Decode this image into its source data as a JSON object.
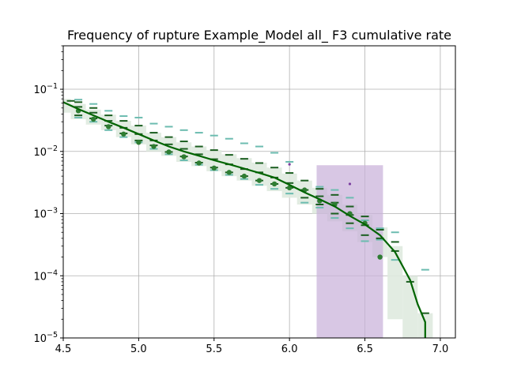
{
  "chart_data": {
    "type": "line",
    "title": "Frequency of rupture Example_Model all_ F3 cumulative rate",
    "xlabel": "",
    "ylabel": "",
    "xlim": [
      4.5,
      7.1
    ],
    "ylim": [
      1e-05,
      0.5
    ],
    "yscale": "log",
    "grid": true,
    "x_ticks": [
      "4.5",
      "5.0",
      "5.5",
      "6.0",
      "6.5",
      "7.0"
    ],
    "y_ticks": [
      {
        "value": 1e-05,
        "base": "10",
        "exp": "−5"
      },
      {
        "value": 0.0001,
        "base": "10",
        "exp": "−4"
      },
      {
        "value": 0.001,
        "base": "10",
        "exp": "−3"
      },
      {
        "value": 0.01,
        "base": "10",
        "exp": "−2"
      },
      {
        "value": 0.1,
        "base": "10",
        "exp": "−1"
      }
    ],
    "colors": {
      "model_line": "#006400",
      "model_band": "#dfeadf",
      "obs_points": "#2e7d32",
      "dash_dark": "#1b5e20",
      "dash_light": "#6cbcb0",
      "purple_box": "#c9b2da",
      "purple_point": "#7b3fa0"
    },
    "model_curve": {
      "x": [
        4.5,
        4.6,
        4.7,
        4.8,
        4.9,
        5.0,
        5.1,
        5.2,
        5.3,
        5.4,
        5.5,
        5.6,
        5.7,
        5.8,
        5.9,
        6.0,
        6.1,
        6.2,
        6.3,
        6.4,
        6.5,
        6.6,
        6.7,
        6.8,
        6.85,
        6.9,
        6.9
      ],
      "y": [
        0.062,
        0.048,
        0.038,
        0.03,
        0.024,
        0.019,
        0.015,
        0.012,
        0.01,
        0.0085,
        0.0072,
        0.0062,
        0.0053,
        0.0045,
        0.0038,
        0.0029,
        0.0022,
        0.0017,
        0.0013,
        0.00092,
        0.00067,
        0.00045,
        0.00024,
        8.5e-05,
        3.5e-05,
        1.8e-05,
        1e-05
      ]
    },
    "model_band_steps": [
      {
        "x0": 4.45,
        "x1": 4.55,
        "lo": 0.042,
        "hi": 0.07
      },
      {
        "x0": 4.55,
        "x1": 4.65,
        "lo": 0.033,
        "hi": 0.058
      },
      {
        "x0": 4.65,
        "x1": 4.75,
        "lo": 0.027,
        "hi": 0.047
      },
      {
        "x0": 4.75,
        "x1": 4.85,
        "lo": 0.022,
        "hi": 0.039
      },
      {
        "x0": 4.85,
        "x1": 4.95,
        "lo": 0.017,
        "hi": 0.031
      },
      {
        "x0": 4.95,
        "x1": 5.05,
        "lo": 0.013,
        "hi": 0.026
      },
      {
        "x0": 5.05,
        "x1": 5.15,
        "lo": 0.01,
        "hi": 0.02
      },
      {
        "x0": 5.15,
        "x1": 5.25,
        "lo": 0.0085,
        "hi": 0.017
      },
      {
        "x0": 5.25,
        "x1": 5.35,
        "lo": 0.0068,
        "hi": 0.014
      },
      {
        "x0": 5.35,
        "x1": 5.45,
        "lo": 0.0058,
        "hi": 0.012
      },
      {
        "x0": 5.45,
        "x1": 5.55,
        "lo": 0.0048,
        "hi": 0.0105
      },
      {
        "x0": 5.55,
        "x1": 5.65,
        "lo": 0.004,
        "hi": 0.009
      },
      {
        "x0": 5.65,
        "x1": 5.75,
        "lo": 0.0034,
        "hi": 0.0078
      },
      {
        "x0": 5.75,
        "x1": 5.85,
        "lo": 0.0028,
        "hi": 0.0066
      },
      {
        "x0": 5.85,
        "x1": 5.95,
        "lo": 0.0023,
        "hi": 0.0055
      },
      {
        "x0": 5.95,
        "x1": 6.05,
        "lo": 0.0018,
        "hi": 0.0044
      },
      {
        "x0": 6.05,
        "x1": 6.15,
        "lo": 0.0014,
        "hi": 0.0034
      },
      {
        "x0": 6.15,
        "x1": 6.25,
        "lo": 0.001,
        "hi": 0.0026
      },
      {
        "x0": 6.25,
        "x1": 6.35,
        "lo": 0.00075,
        "hi": 0.002
      },
      {
        "x0": 6.35,
        "x1": 6.45,
        "lo": 0.00052,
        "hi": 0.0014
      },
      {
        "x0": 6.45,
        "x1": 6.55,
        "lo": 0.00035,
        "hi": 0.00095
      },
      {
        "x0": 6.55,
        "x1": 6.65,
        "lo": 0.0002,
        "hi": 0.0006
      },
      {
        "x0": 6.65,
        "x1": 6.75,
        "lo": 2e-05,
        "hi": 0.0003
      },
      {
        "x0": 6.75,
        "x1": 6.85,
        "lo": 1e-05,
        "hi": 0.0001
      },
      {
        "x0": 6.85,
        "x1": 6.95,
        "lo": 1e-05,
        "hi": 2.5e-05
      }
    ],
    "observed_points": {
      "x": [
        4.6,
        4.7,
        4.8,
        4.9,
        5.0,
        5.1,
        5.2,
        5.3,
        5.4,
        5.5,
        5.6,
        5.7,
        5.8,
        5.9,
        6.0,
        6.1,
        6.2,
        6.3,
        6.4,
        6.5,
        6.6
      ],
      "y": [
        0.045,
        0.033,
        0.025,
        0.019,
        0.014,
        0.012,
        0.0098,
        0.0082,
        0.0065,
        0.0054,
        0.0046,
        0.004,
        0.0034,
        0.003,
        0.0026,
        0.0024,
        0.0016,
        0.0014,
        0.001,
        0.0007,
        0.0002
      ]
    },
    "dash_markers_dark": [
      {
        "x": 4.55,
        "y": 0.065
      },
      {
        "x": 4.6,
        "y": 0.062
      },
      {
        "x": 4.6,
        "y": 0.052
      },
      {
        "x": 4.6,
        "y": 0.038
      },
      {
        "x": 4.7,
        "y": 0.05
      },
      {
        "x": 4.7,
        "y": 0.042
      },
      {
        "x": 4.7,
        "y": 0.034
      },
      {
        "x": 4.8,
        "y": 0.038
      },
      {
        "x": 4.8,
        "y": 0.031
      },
      {
        "x": 4.8,
        "y": 0.026
      },
      {
        "x": 4.9,
        "y": 0.031
      },
      {
        "x": 4.9,
        "y": 0.024
      },
      {
        "x": 4.9,
        "y": 0.0195
      },
      {
        "x": 5.0,
        "y": 0.026
      },
      {
        "x": 5.0,
        "y": 0.019
      },
      {
        "x": 5.0,
        "y": 0.015
      },
      {
        "x": 5.1,
        "y": 0.02
      },
      {
        "x": 5.1,
        "y": 0.015
      },
      {
        "x": 5.1,
        "y": 0.0125
      },
      {
        "x": 5.2,
        "y": 0.017
      },
      {
        "x": 5.2,
        "y": 0.013
      },
      {
        "x": 5.2,
        "y": 0.0098
      },
      {
        "x": 5.3,
        "y": 0.0145
      },
      {
        "x": 5.3,
        "y": 0.011
      },
      {
        "x": 5.3,
        "y": 0.0083
      },
      {
        "x": 5.4,
        "y": 0.012
      },
      {
        "x": 5.4,
        "y": 0.009
      },
      {
        "x": 5.4,
        "y": 0.0066
      },
      {
        "x": 5.5,
        "y": 0.0105
      },
      {
        "x": 5.5,
        "y": 0.0075
      },
      {
        "x": 5.5,
        "y": 0.0055
      },
      {
        "x": 5.6,
        "y": 0.0088
      },
      {
        "x": 5.6,
        "y": 0.0062
      },
      {
        "x": 5.6,
        "y": 0.0046
      },
      {
        "x": 5.7,
        "y": 0.0076
      },
      {
        "x": 5.7,
        "y": 0.0052
      },
      {
        "x": 5.7,
        "y": 0.004
      },
      {
        "x": 5.8,
        "y": 0.0065
      },
      {
        "x": 5.8,
        "y": 0.0046
      },
      {
        "x": 5.8,
        "y": 0.0034
      },
      {
        "x": 5.9,
        "y": 0.0055
      },
      {
        "x": 5.9,
        "y": 0.0038
      },
      {
        "x": 5.9,
        "y": 0.003
      },
      {
        "x": 6.0,
        "y": 0.0045
      },
      {
        "x": 6.0,
        "y": 0.0031
      },
      {
        "x": 6.0,
        "y": 0.0026
      },
      {
        "x": 6.1,
        "y": 0.0034
      },
      {
        "x": 6.1,
        "y": 0.0024
      },
      {
        "x": 6.1,
        "y": 0.0018
      },
      {
        "x": 6.2,
        "y": 0.0025
      },
      {
        "x": 6.2,
        "y": 0.0019
      },
      {
        "x": 6.2,
        "y": 0.0014
      },
      {
        "x": 6.3,
        "y": 0.002
      },
      {
        "x": 6.3,
        "y": 0.0015
      },
      {
        "x": 6.3,
        "y": 0.001
      },
      {
        "x": 6.4,
        "y": 0.0013
      },
      {
        "x": 6.4,
        "y": 0.00095
      },
      {
        "x": 6.4,
        "y": 0.0007
      },
      {
        "x": 6.5,
        "y": 0.0009
      },
      {
        "x": 6.5,
        "y": 0.00065
      },
      {
        "x": 6.5,
        "y": 0.00045
      },
      {
        "x": 6.6,
        "y": 0.00055
      },
      {
        "x": 6.6,
        "y": 0.0004
      },
      {
        "x": 6.7,
        "y": 0.00035
      },
      {
        "x": 6.7,
        "y": 0.00025
      },
      {
        "x": 6.8,
        "y": 8e-05
      },
      {
        "x": 6.9,
        "y": 2.5e-05
      }
    ],
    "dash_markers_light": [
      {
        "x": 4.6,
        "y": 0.068
      },
      {
        "x": 4.6,
        "y": 0.035
      },
      {
        "x": 4.7,
        "y": 0.058
      },
      {
        "x": 4.7,
        "y": 0.03
      },
      {
        "x": 4.8,
        "y": 0.045
      },
      {
        "x": 4.8,
        "y": 0.022
      },
      {
        "x": 4.9,
        "y": 0.037
      },
      {
        "x": 4.9,
        "y": 0.017
      },
      {
        "x": 5.0,
        "y": 0.035
      },
      {
        "x": 5.0,
        "y": 0.014
      },
      {
        "x": 5.1,
        "y": 0.028
      },
      {
        "x": 5.1,
        "y": 0.011
      },
      {
        "x": 5.2,
        "y": 0.025
      },
      {
        "x": 5.2,
        "y": 0.009
      },
      {
        "x": 5.3,
        "y": 0.022
      },
      {
        "x": 5.3,
        "y": 0.0072
      },
      {
        "x": 5.4,
        "y": 0.02
      },
      {
        "x": 5.4,
        "y": 0.0061
      },
      {
        "x": 5.5,
        "y": 0.018
      },
      {
        "x": 5.5,
        "y": 0.005
      },
      {
        "x": 5.6,
        "y": 0.016
      },
      {
        "x": 5.6,
        "y": 0.0042
      },
      {
        "x": 5.7,
        "y": 0.0135
      },
      {
        "x": 5.7,
        "y": 0.0036
      },
      {
        "x": 5.8,
        "y": 0.012
      },
      {
        "x": 5.8,
        "y": 0.0029
      },
      {
        "x": 5.9,
        "y": 0.0095
      },
      {
        "x": 5.9,
        "y": 0.0025
      },
      {
        "x": 6.0,
        "y": 0.0068
      },
      {
        "x": 6.0,
        "y": 0.0021
      },
      {
        "x": 6.1,
        "y": 0.0015
      },
      {
        "x": 6.2,
        "y": 0.0027
      },
      {
        "x": 6.2,
        "y": 0.00125
      },
      {
        "x": 6.3,
        "y": 0.0024
      },
      {
        "x": 6.3,
        "y": 0.00085
      },
      {
        "x": 6.4,
        "y": 0.0018
      },
      {
        "x": 6.4,
        "y": 0.00058
      },
      {
        "x": 6.5,
        "y": 0.00078
      },
      {
        "x": 6.5,
        "y": 0.00036
      },
      {
        "x": 6.6,
        "y": 0.00058
      },
      {
        "x": 6.6,
        "y": 0.00038
      },
      {
        "x": 6.7,
        "y": 0.0005
      },
      {
        "x": 6.7,
        "y": 0.00018
      },
      {
        "x": 6.9,
        "y": 0.000125
      }
    ],
    "purple_band": {
      "x0": 6.18,
      "x1": 6.62,
      "y_lo": 1e-05,
      "y_hi": 0.006
    },
    "purple_points": [
      {
        "x": 6.0,
        "y": 0.0062
      },
      {
        "x": 6.4,
        "y": 0.003
      }
    ]
  }
}
